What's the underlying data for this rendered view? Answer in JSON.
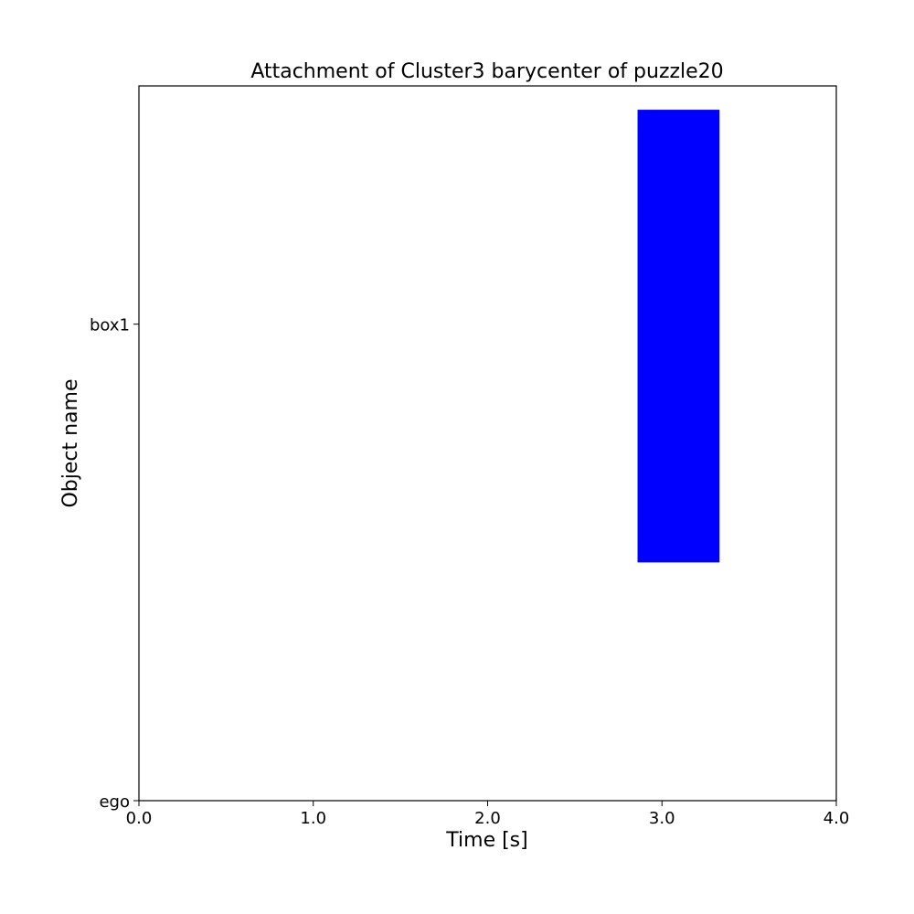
{
  "chart_data": {
    "type": "bar",
    "orientation": "vertical-span",
    "title": "Attachment of Cluster3 barycenter of puzzle20",
    "xlabel": "Time [s]",
    "ylabel": "Object name",
    "xlim": [
      0.0,
      4.0
    ],
    "ylim": [
      0,
      1.5
    ],
    "x_ticks": [
      {
        "value": 0.0,
        "label": "0.0"
      },
      {
        "value": 1.0,
        "label": "1.0"
      },
      {
        "value": 2.0,
        "label": "2.0"
      },
      {
        "value": 3.0,
        "label": "3.0"
      },
      {
        "value": 4.0,
        "label": "4.0"
      }
    ],
    "y_ticks": [
      {
        "value": 0,
        "label": "ego"
      },
      {
        "value": 1,
        "label": "box1"
      }
    ],
    "bars": [
      {
        "x_start": 2.86,
        "x_end": 3.33,
        "y_bottom": 0.5,
        "y_top": 1.45,
        "color": "#0000ff"
      }
    ],
    "grid": false,
    "legend": "none"
  }
}
